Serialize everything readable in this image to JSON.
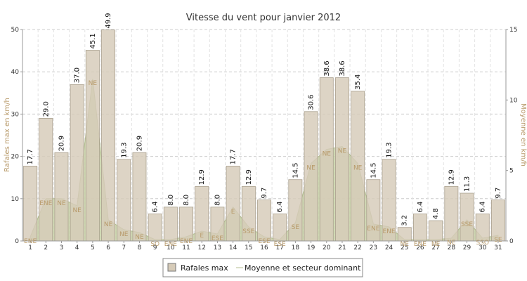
{
  "chart_data": {
    "type": "bar",
    "title": "Vitesse du vent pour janvier 2012",
    "ylabel": "Rafales max en km/h",
    "y2label": "Moyenne en km/h",
    "ylim": [
      0,
      50
    ],
    "y2lim": [
      0,
      15
    ],
    "yticks": [
      0,
      10,
      20,
      30,
      40,
      50
    ],
    "y2ticks": [
      0,
      5,
      10,
      15
    ],
    "grid": true,
    "legend_position": "bottom",
    "categories": [
      "1",
      "2",
      "3",
      "4",
      "5",
      "6",
      "7",
      "8",
      "9",
      "10",
      "11",
      "12",
      "13",
      "14",
      "15",
      "16",
      "17",
      "18",
      "19",
      "20",
      "21",
      "22",
      "23",
      "24",
      "25",
      "26",
      "27",
      "28",
      "29",
      "30",
      "31"
    ],
    "series": [
      {
        "name": "Rafales max",
        "type": "bar",
        "axis": "left",
        "color": "#d6cbb8",
        "values": [
          17.7,
          29.0,
          20.9,
          37.0,
          45.1,
          49.9,
          19.3,
          20.9,
          6.4,
          8.0,
          8.0,
          12.9,
          8.0,
          17.7,
          12.9,
          9.7,
          6.4,
          14.5,
          30.6,
          38.6,
          38.6,
          35.4,
          14.5,
          19.3,
          3.2,
          6.4,
          4.8,
          12.9,
          11.3,
          6.4,
          9.7
        ],
        "labels": [
          "17.7",
          "29.0",
          "20.9",
          "37.0",
          "45.1",
          "49.9",
          "19.3",
          "20.9",
          "6.4",
          "8.0",
          "8.0",
          "12.9",
          "8.0",
          "17.7",
          "12.9",
          "9.7",
          "6.4",
          "14.5",
          "30.6",
          "38.6",
          "38.6",
          "35.4",
          "14.5",
          "19.3",
          "3.2",
          "6.4",
          "4.8",
          "12.9",
          "11.3",
          "6.4",
          "9.7"
        ]
      },
      {
        "name": "Moyenne et secteur dominant",
        "type": "area",
        "axis": "right",
        "color": "#c9d3a8",
        "values": [
          0.3,
          3.0,
          3.0,
          2.5,
          11.5,
          1.5,
          0.8,
          0.6,
          0.1,
          0.1,
          0.3,
          0.7,
          0.5,
          2.4,
          1.0,
          0.3,
          0.1,
          1.3,
          5.5,
          6.5,
          6.7,
          5.5,
          1.2,
          1.0,
          0.1,
          0.1,
          0.1,
          0.2,
          1.5,
          0.2,
          0.4
        ],
        "sectors": [
          "ENE",
          "ENE",
          "NE",
          "NE",
          "NE",
          "NE",
          "NE",
          "NE",
          "SO",
          "ENE",
          "ENE",
          "E",
          "ESE",
          "E",
          "SSE",
          "ESE",
          "ESE",
          "SE",
          "NE",
          "NE",
          "NE",
          "NE",
          "ENE",
          "ENE",
          "NE",
          "ENE",
          "NE",
          "NE",
          "SSE",
          "SSO",
          "SE"
        ]
      }
    ]
  },
  "colors": {
    "bar_fill": "#d6cbb8",
    "bar_stroke": "#aaa08e",
    "area_fill": "#c9d3a8",
    "area_stroke": "#b4be91",
    "sector_text": "#b89a6a",
    "grid": "#cccccc",
    "axis": "#999999"
  },
  "legend": {
    "bar_label": "Rafales max",
    "line_label": "Moyenne et secteur dominant"
  }
}
